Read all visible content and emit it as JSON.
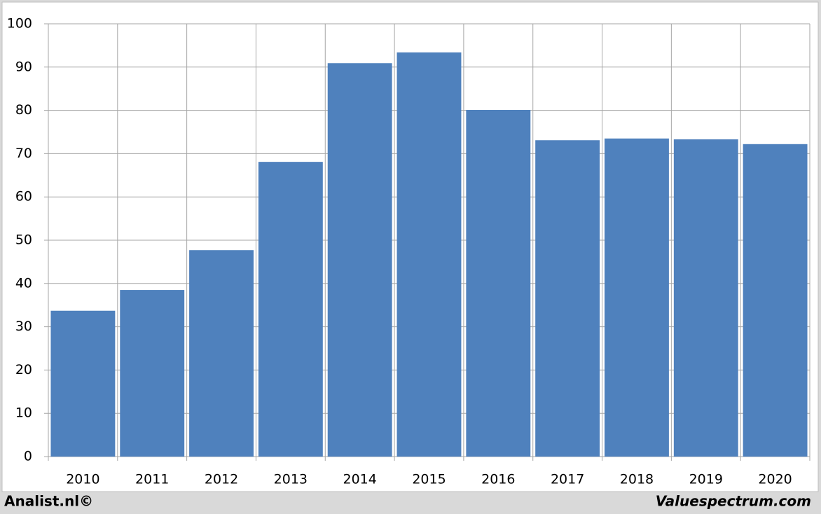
{
  "chart_data": {
    "type": "bar",
    "categories": [
      "2010",
      "2011",
      "2012",
      "2013",
      "2014",
      "2015",
      "2016",
      "2017",
      "2018",
      "2019",
      "2020"
    ],
    "values": [
      33.7,
      38.5,
      47.7,
      68.1,
      90.9,
      93.4,
      80.1,
      73.1,
      73.5,
      73.3,
      72.2
    ],
    "color": "#4f81bd",
    "ylim": [
      0,
      100
    ],
    "yticks": [
      0,
      10,
      20,
      30,
      40,
      50,
      60,
      70,
      80,
      90,
      100
    ],
    "grid": true,
    "annotations": [
      "Analist.nl©",
      "Valuespectrum.com"
    ]
  }
}
